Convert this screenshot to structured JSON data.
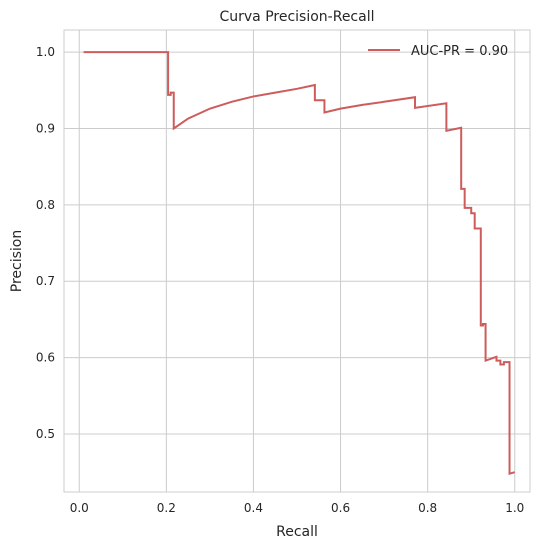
{
  "chart_data": {
    "type": "line",
    "title": "Curva Precision-Recall",
    "xlabel": "Recall",
    "ylabel": "Precision",
    "xlim": [
      -0.035,
      1.035
    ],
    "ylim": [
      0.424,
      1.029
    ],
    "xticks": [
      "0.0",
      "0.2",
      "0.4",
      "0.6",
      "0.8",
      "1.0"
    ],
    "yticks": [
      "0.5",
      "0.6",
      "0.7",
      "0.8",
      "0.9",
      "1.0"
    ],
    "grid": true,
    "legend_position": "top-right",
    "series": [
      {
        "name": "AUC-PR = 0.90",
        "color": "#cd5c5c",
        "step": "post",
        "x": [
          0.01,
          0.204,
          0.204,
          0.21,
          0.21,
          0.217,
          0.217,
          0.25,
          0.3,
          0.35,
          0.4,
          0.45,
          0.5,
          0.541,
          0.541,
          0.544,
          0.544,
          0.563,
          0.563,
          0.6,
          0.65,
          0.7,
          0.771,
          0.771,
          0.843,
          0.843,
          0.877,
          0.877,
          0.885,
          0.885,
          0.89,
          0.89,
          0.9,
          0.9,
          0.908,
          0.908,
          0.922,
          0.922,
          0.927,
          0.927,
          0.933,
          0.933,
          0.958,
          0.958,
          0.967,
          0.967,
          0.975,
          0.975,
          0.988,
          0.988,
          1.0
        ],
        "y": [
          1.0,
          1.0,
          0.944,
          0.944,
          0.947,
          0.947,
          0.9,
          0.913,
          0.926,
          0.935,
          0.942,
          0.947,
          0.952,
          0.957,
          0.937,
          0.937,
          0.937,
          0.937,
          0.921,
          0.926,
          0.931,
          0.935,
          0.941,
          0.927,
          0.933,
          0.897,
          0.901,
          0.821,
          0.821,
          0.796,
          0.796,
          0.796,
          0.796,
          0.789,
          0.789,
          0.769,
          0.769,
          0.642,
          0.642,
          0.644,
          0.644,
          0.596,
          0.601,
          0.596,
          0.596,
          0.591,
          0.591,
          0.594,
          0.594,
          0.448,
          0.45
        ]
      }
    ]
  }
}
